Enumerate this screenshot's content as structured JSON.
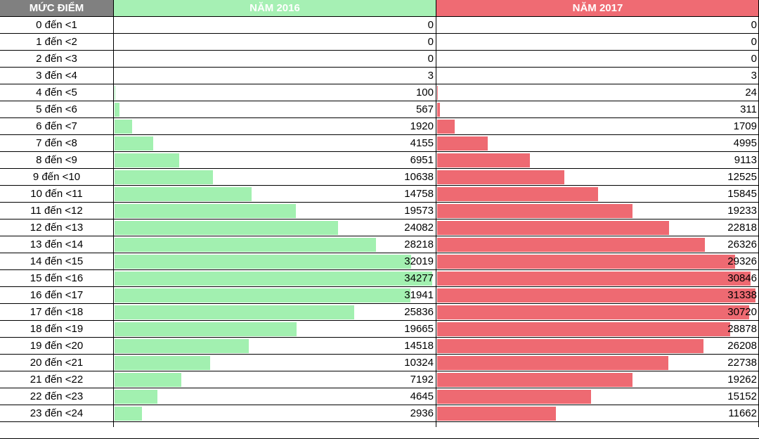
{
  "table": {
    "header": [
      "MỨC ĐIỂM",
      "NĂM 2016",
      "NĂM 2017"
    ],
    "rows": [
      [
        "0 đến <1",
        0,
        0
      ],
      [
        "1 đến <2",
        0,
        0
      ],
      [
        "2 đến <3",
        0,
        0
      ],
      [
        "3 đến <4",
        3,
        3
      ],
      [
        "4 đến <5",
        100,
        24
      ],
      [
        "5 đến <6",
        567,
        311
      ],
      [
        "6 đến <7",
        1920,
        1709
      ],
      [
        "7 đến <8",
        4155,
        4995
      ],
      [
        "8 đến <9",
        6951,
        9113
      ],
      [
        "9 đến <10",
        10638,
        12525
      ],
      [
        "10 đến <11",
        14758,
        15845
      ],
      [
        "11 đến <12",
        19573,
        19233
      ],
      [
        "12 đến <13",
        24082,
        22818
      ],
      [
        "13 đến <14",
        28218,
        26326
      ],
      [
        "14 đến <15",
        32019,
        29326
      ],
      [
        "15 đến <16",
        34277,
        30846
      ],
      [
        "16 đến <17",
        31941,
        31338
      ],
      [
        "17 đến <18",
        25836,
        30720
      ],
      [
        "18 đến <19",
        19665,
        28878
      ],
      [
        "19 đến <20",
        14518,
        26208
      ],
      [
        "20 đến <21",
        10324,
        22738
      ],
      [
        "21 đến <22",
        7192,
        19262
      ],
      [
        "22 đến <23",
        4645,
        15152
      ],
      [
        "23 đến <24",
        2936,
        11662
      ]
    ]
  }
}
